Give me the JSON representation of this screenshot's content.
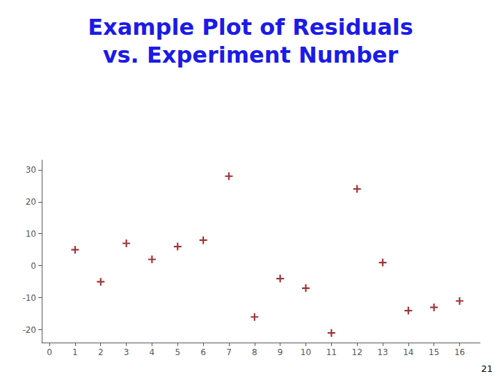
{
  "chart_data": {
    "type": "scatter",
    "title": "Example Plot of Residuals\nvs. Experiment Number",
    "annotations": [
      "21"
    ],
    "x": [
      1,
      2,
      3,
      4,
      5,
      6,
      7,
      8,
      9,
      10,
      11,
      12,
      13,
      14,
      15,
      16
    ],
    "values": [
      5,
      -5,
      7,
      2,
      6,
      8,
      28,
      -16,
      -4,
      -7,
      -21,
      24,
      1,
      -14,
      -13,
      -11
    ],
    "color": "#8B0000",
    "marker": "plus",
    "xlim": [
      -0.3,
      16.8
    ],
    "xticks": [
      0,
      1,
      2,
      3,
      4,
      5,
      6,
      7,
      8,
      9,
      10,
      11,
      12,
      13,
      14,
      15,
      16
    ],
    "ylim": [
      -24,
      33
    ],
    "yticks": [
      -20,
      -10,
      0,
      10,
      20,
      30
    ],
    "grid": false
  }
}
